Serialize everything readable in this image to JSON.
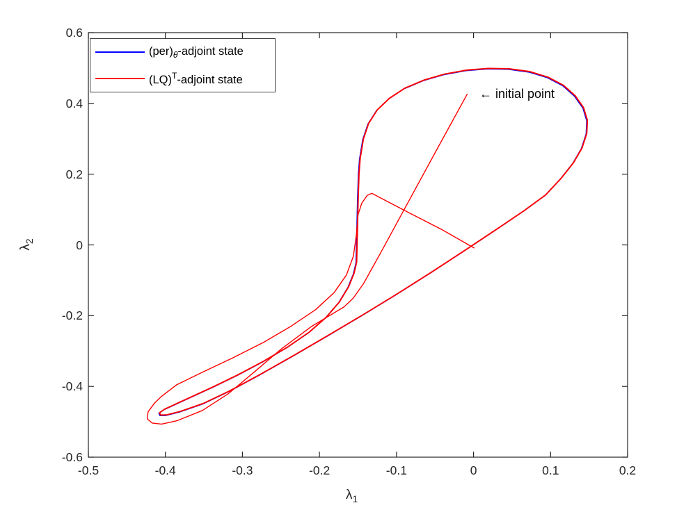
{
  "figure": {
    "background": "#ffffff",
    "frame_color": "#262626",
    "text_color": "#262626"
  },
  "legend": {
    "items": [
      {
        "pre": "(per)",
        "sub": "θ",
        "post": "-adjoint state",
        "color": "#0000FF"
      },
      {
        "pre": "(LQ)",
        "sup": "T",
        "post": "-adjoint state",
        "color": "#FF0000"
      }
    ]
  },
  "annotation": {
    "text": "← initial point"
  },
  "chart_data": {
    "type": "line",
    "title": "",
    "xlabel": {
      "base": "λ",
      "sub": "1"
    },
    "ylabel": {
      "base": "λ",
      "sub": "2"
    },
    "xlim": [
      -0.5,
      0.2
    ],
    "ylim": [
      -0.6,
      0.6
    ],
    "x_ticks": [
      -0.5,
      -0.4,
      -0.3,
      -0.2,
      -0.1,
      0,
      0.1,
      0.2
    ],
    "x_tick_labels": [
      "-0.5",
      "-0.4",
      "-0.3",
      "-0.2",
      "-0.1",
      "0",
      "0.1",
      "0.2"
    ],
    "y_ticks": [
      -0.6,
      -0.4,
      -0.2,
      0,
      0.2,
      0.4,
      0.6
    ],
    "y_tick_labels": [
      "-0.6",
      "-0.4",
      "-0.2",
      "0",
      "0.2",
      "0.4",
      "0.6"
    ],
    "grid": false,
    "legend_position": "northwest",
    "annotation_point": {
      "x": -0.008,
      "y": 0.427
    },
    "final_point": {
      "x": 0.001,
      "y": -0.009
    },
    "series": [
      {
        "name": "(per)_theta-adjoint state",
        "color": "#0000FF",
        "role": "periodic limit cycle of adjoint state",
        "closed": true,
        "points": [
          [
            -0.1525,
            -0.05
          ],
          [
            -0.1515,
            0.04
          ],
          [
            -0.1505,
            0.13
          ],
          [
            -0.1495,
            0.2
          ],
          [
            -0.148,
            0.242
          ],
          [
            -0.1438,
            0.298
          ],
          [
            -0.137,
            0.342
          ],
          [
            -0.1258,
            0.38
          ],
          [
            -0.11,
            0.413
          ],
          [
            -0.09,
            0.4415
          ],
          [
            -0.065,
            0.4645
          ],
          [
            -0.038,
            0.4815
          ],
          [
            -0.01,
            0.4925
          ],
          [
            0.018,
            0.4975
          ],
          [
            0.045,
            0.4965
          ],
          [
            0.072,
            0.4885
          ],
          [
            0.096,
            0.4725
          ],
          [
            0.116,
            0.4495
          ],
          [
            0.131,
            0.4205
          ],
          [
            0.142,
            0.3865
          ],
          [
            0.147,
            0.3505
          ],
          [
            0.1462,
            0.3135
          ],
          [
            0.14,
            0.2725
          ],
          [
            0.129,
            0.231
          ],
          [
            0.113,
            0.187
          ],
          [
            0.093,
            0.14
          ],
          [
            0.065,
            0.0955
          ],
          [
            0.03,
            0.044
          ],
          [
            -0.01,
            -0.014
          ],
          [
            -0.055,
            -0.078
          ],
          [
            -0.1,
            -0.14
          ],
          [
            -0.145,
            -0.2
          ],
          [
            -0.19,
            -0.258
          ],
          [
            -0.235,
            -0.315
          ],
          [
            -0.278,
            -0.368
          ],
          [
            -0.318,
            -0.415
          ],
          [
            -0.352,
            -0.45
          ],
          [
            -0.381,
            -0.472
          ],
          [
            -0.399,
            -0.482
          ],
          [
            -0.407,
            -0.4825
          ],
          [
            -0.4085,
            -0.476
          ],
          [
            -0.402,
            -0.466
          ],
          [
            -0.388,
            -0.452
          ],
          [
            -0.366,
            -0.43
          ],
          [
            -0.338,
            -0.402
          ],
          [
            -0.306,
            -0.368
          ],
          [
            -0.273,
            -0.33
          ],
          [
            -0.242,
            -0.29
          ],
          [
            -0.214,
            -0.248
          ],
          [
            -0.192,
            -0.206
          ],
          [
            -0.175,
            -0.163
          ],
          [
            -0.163,
            -0.12
          ],
          [
            -0.156,
            -0.082
          ],
          [
            -0.1525,
            -0.05
          ]
        ]
      },
      {
        "name": "(LQ)^T-adjoint state",
        "color": "#FF0000",
        "role": "finite-horizon LQ adjoint: transient from initial point, passes tracking the cycle, terminal segment to the origin",
        "tracks_cycle_overlay": true,
        "transient_points": [
          [
            -0.008,
            0.427
          ],
          [
            -0.048,
            0.268
          ],
          [
            -0.09,
            0.1
          ],
          [
            -0.122,
            -0.028
          ],
          [
            -0.143,
            -0.11
          ],
          [
            -0.156,
            -0.15
          ],
          [
            -0.168,
            -0.175
          ],
          [
            -0.21,
            -0.23
          ],
          [
            -0.25,
            -0.295
          ],
          [
            -0.285,
            -0.36
          ],
          [
            -0.318,
            -0.42
          ],
          [
            -0.352,
            -0.468
          ],
          [
            -0.385,
            -0.497
          ],
          [
            -0.405,
            -0.5065
          ],
          [
            -0.417,
            -0.5035
          ],
          [
            -0.4235,
            -0.492
          ],
          [
            -0.4225,
            -0.472
          ],
          [
            -0.414,
            -0.447
          ],
          [
            -0.405,
            -0.428
          ],
          [
            -0.385,
            -0.395
          ],
          [
            -0.352,
            -0.36
          ],
          [
            -0.313,
            -0.32
          ],
          [
            -0.273,
            -0.276
          ],
          [
            -0.237,
            -0.23
          ],
          [
            -0.205,
            -0.183
          ],
          [
            -0.181,
            -0.135
          ],
          [
            -0.165,
            -0.085
          ],
          [
            -0.156,
            -0.032
          ],
          [
            -0.152,
            0.03
          ],
          [
            -0.15,
            0.085
          ],
          [
            -0.145,
            0.118
          ],
          [
            -0.138,
            0.14
          ],
          [
            -0.132,
            0.146
          ],
          [
            -0.09,
            0.098
          ],
          [
            -0.04,
            0.042
          ],
          [
            0.001,
            -0.009
          ]
        ]
      }
    ]
  }
}
